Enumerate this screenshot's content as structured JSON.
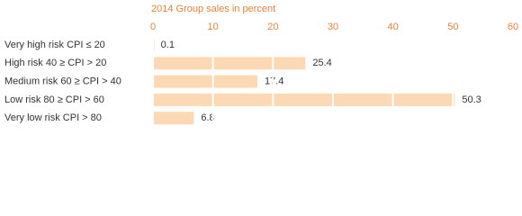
{
  "chart_data": {
    "type": "bar",
    "orientation": "horizontal",
    "title": "2014 Group sales in percent",
    "categories": [
      "Very high risk CPI ≤ 20",
      "High risk 40 ≥ CPI > 20",
      "Medium risk 60 ≥ CPI > 40",
      "Low risk 80 ≥ CPI > 60",
      "Very low risk CPI > 80"
    ],
    "values": [
      0.1,
      25.4,
      17.4,
      50.3,
      6.8
    ],
    "color": "#fcd9b4",
    "xlim": [
      0,
      60
    ],
    "xticks": [
      0,
      10,
      20,
      30,
      40,
      50,
      60
    ],
    "grid": true
  }
}
